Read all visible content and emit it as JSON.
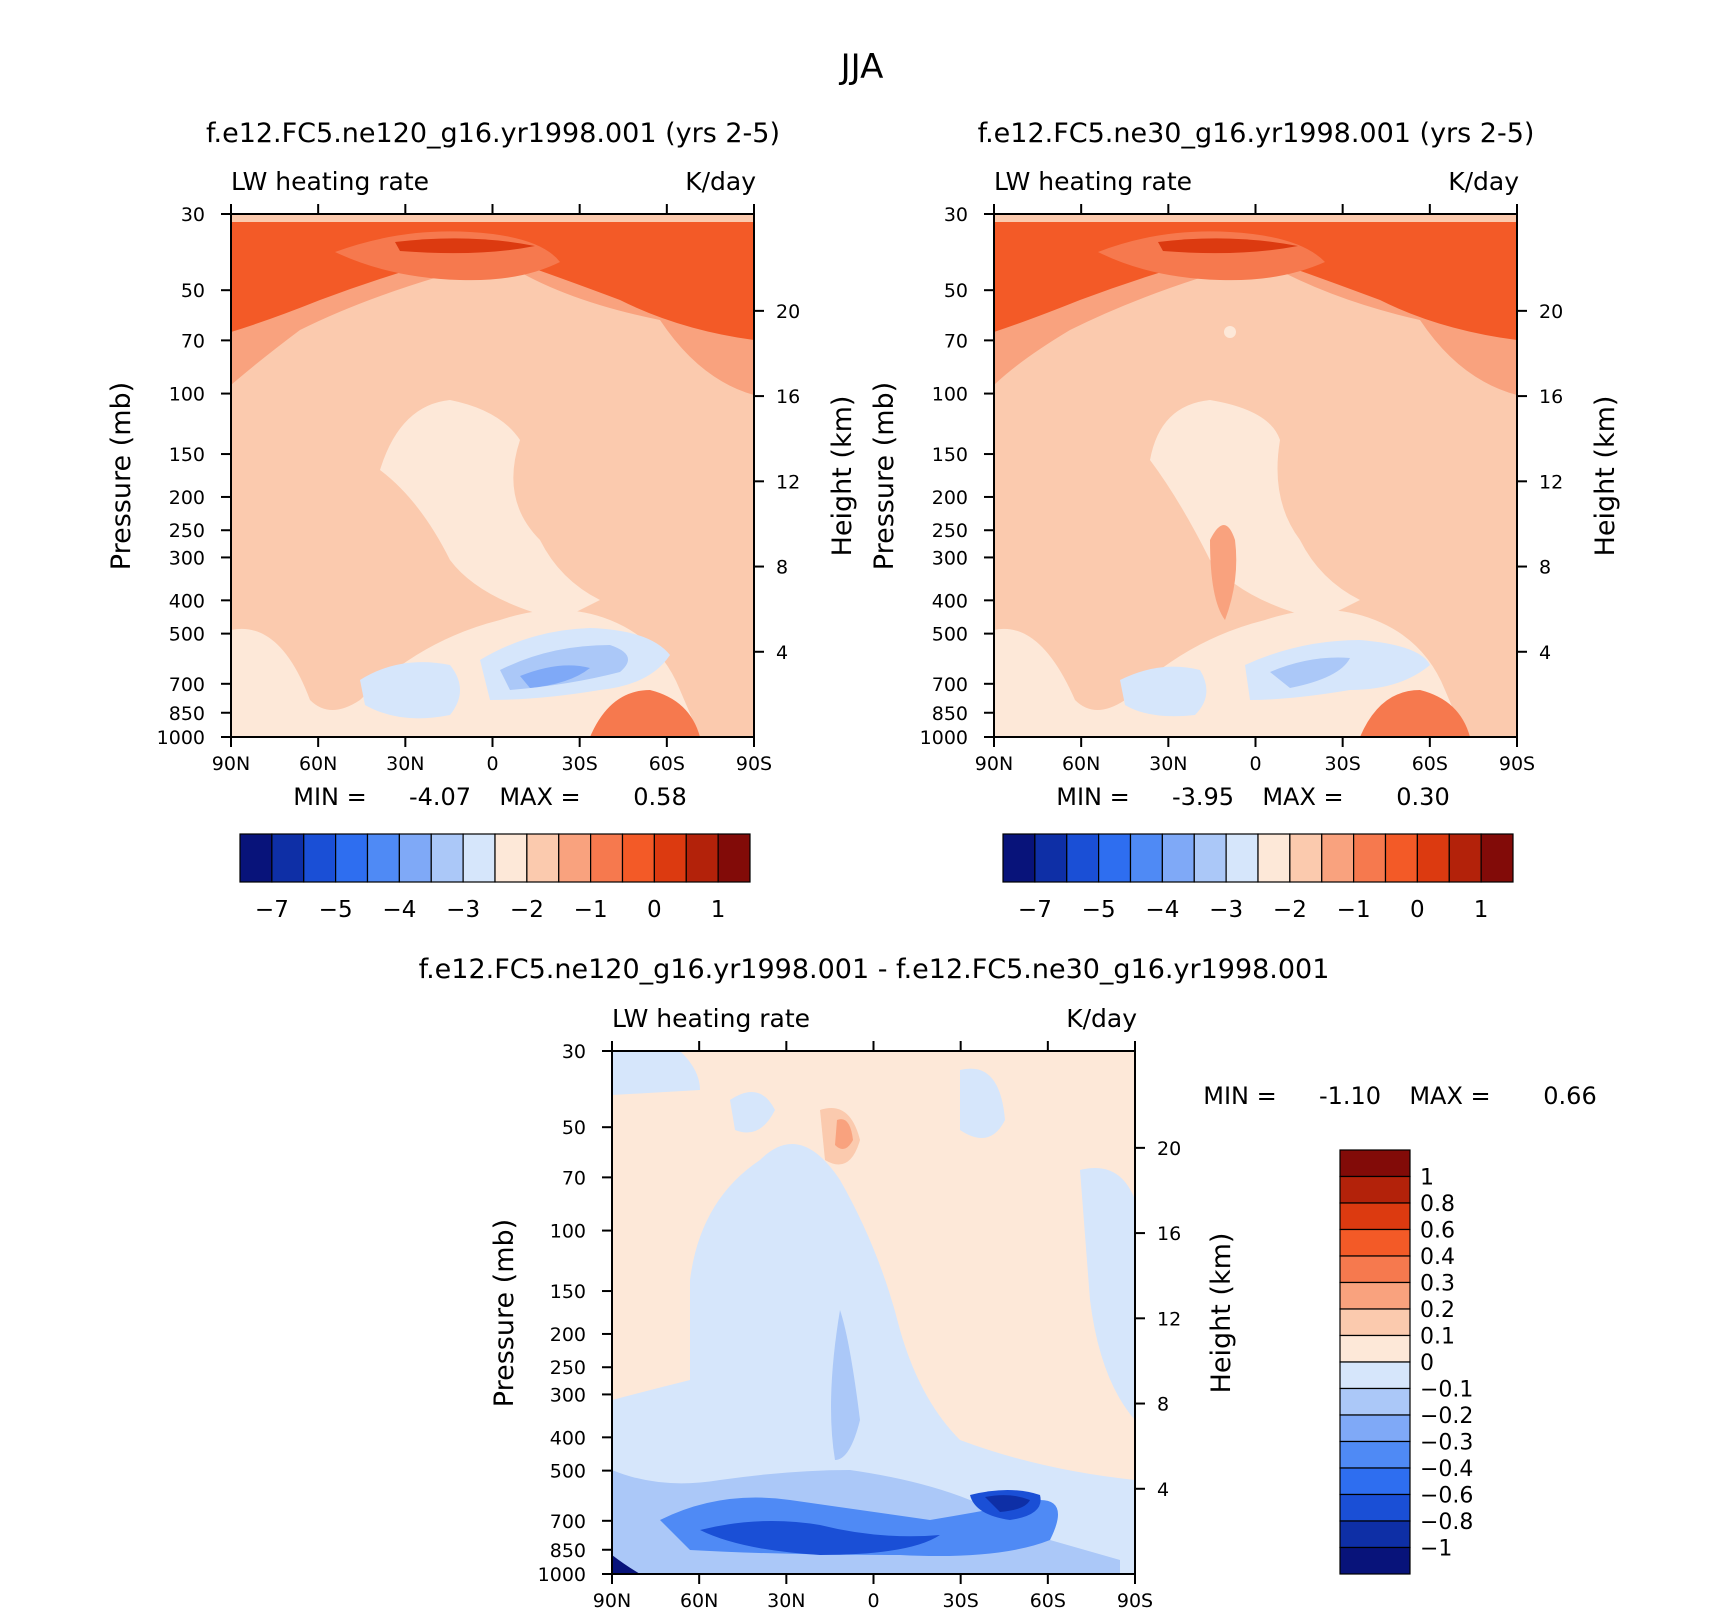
{
  "figure_title": "JJA",
  "chart_data": [
    {
      "type": "heatmap",
      "id": "panel1",
      "title": "f.e12.FC5.ne120_g16.yr1998.001 (yrs 2-5)",
      "variable": "LW heating rate",
      "units": "K/day",
      "xlabel": "",
      "ylabel": "Pressure (mb)",
      "y2label": "Height (km)",
      "x_ticks": [
        "90N",
        "60N",
        "30N",
        "0",
        "30S",
        "60S",
        "90S"
      ],
      "x_values": [
        90,
        60,
        30,
        0,
        -30,
        -60,
        -90
      ],
      "y_ticks": [
        30,
        50,
        70,
        100,
        150,
        200,
        250,
        300,
        400,
        500,
        700,
        850,
        1000
      ],
      "y2_ticks": [
        20,
        16,
        12,
        8,
        4
      ],
      "ylim": [
        1000,
        30
      ],
      "min_label": "MIN =",
      "min_value": "-4.07",
      "max_label": "MAX =",
      "max_value": "0.58",
      "colorbar_levels": [
        -7,
        -6,
        -5,
        -4.5,
        -4,
        -3.5,
        -3,
        -2.5,
        -2,
        -1.5,
        -1,
        -0.5,
        0,
        0.5,
        1
      ],
      "colorbar_labels": [
        "-7",
        "-5",
        "-4",
        "-3",
        "-2",
        "-1",
        "0",
        "1"
      ]
    },
    {
      "type": "heatmap",
      "id": "panel2",
      "title": "f.e12.FC5.ne30_g16.yr1998.001 (yrs 2-5)",
      "variable": "LW heating rate",
      "units": "K/day",
      "xlabel": "",
      "ylabel": "Pressure (mb)",
      "y2label": "Height (km)",
      "x_ticks": [
        "90N",
        "60N",
        "30N",
        "0",
        "30S",
        "60S",
        "90S"
      ],
      "x_values": [
        90,
        60,
        30,
        0,
        -30,
        -60,
        -90
      ],
      "y_ticks": [
        30,
        50,
        70,
        100,
        150,
        200,
        250,
        300,
        400,
        500,
        700,
        850,
        1000
      ],
      "y2_ticks": [
        20,
        16,
        12,
        8,
        4
      ],
      "ylim": [
        1000,
        30
      ],
      "min_label": "MIN =",
      "min_value": "-3.95",
      "max_label": "MAX =",
      "max_value": "0.30",
      "colorbar_levels": [
        -7,
        -6,
        -5,
        -4.5,
        -4,
        -3.5,
        -3,
        -2.5,
        -2,
        -1.5,
        -1,
        -0.5,
        0,
        0.5,
        1
      ],
      "colorbar_labels": [
        "-7",
        "-5",
        "-4",
        "-3",
        "-2",
        "-1",
        "0",
        "1"
      ]
    },
    {
      "type": "heatmap",
      "id": "panel3",
      "title": "f.e12.FC5.ne120_g16.yr1998.001 - f.e12.FC5.ne30_g16.yr1998.001",
      "variable": "LW heating rate",
      "units": "K/day",
      "xlabel": "",
      "ylabel": "Pressure (mb)",
      "y2label": "Height (km)",
      "x_ticks": [
        "90N",
        "60N",
        "30N",
        "0",
        "30S",
        "60S",
        "90S"
      ],
      "x_values": [
        90,
        60,
        30,
        0,
        -30,
        -60,
        -90
      ],
      "y_ticks": [
        30,
        50,
        70,
        100,
        150,
        200,
        250,
        300,
        400,
        500,
        700,
        850,
        1000
      ],
      "y2_ticks": [
        20,
        16,
        12,
        8,
        4
      ],
      "ylim": [
        1000,
        30
      ],
      "min_label": "MIN =",
      "min_value": "-1.10",
      "max_label": "MAX =",
      "max_value": "0.66",
      "colorbar_levels": [
        1,
        0.8,
        0.6,
        0.4,
        0.3,
        0.2,
        0.1,
        0,
        -0.1,
        -0.2,
        -0.3,
        -0.4,
        -0.6,
        -0.8,
        -1
      ],
      "colorbar_labels": [
        "1",
        "0.8",
        "0.6",
        "0.4",
        "0.3",
        "0.2",
        "0.1",
        "0",
        "-0.1",
        "-0.2",
        "-0.3",
        "-0.4",
        "-0.6",
        "-0.8",
        "-1"
      ]
    }
  ],
  "palette": [
    "#08137a",
    "#0e2fa6",
    "#1a4fd6",
    "#2e6ef0",
    "#4f8af5",
    "#7fa9f7",
    "#abc8f8",
    "#d6e6fb",
    "#fde8d8",
    "#fbcaae",
    "#f9a27e",
    "#f6794e",
    "#f35a27",
    "#dc3a10",
    "#b3220a",
    "#820b08"
  ]
}
